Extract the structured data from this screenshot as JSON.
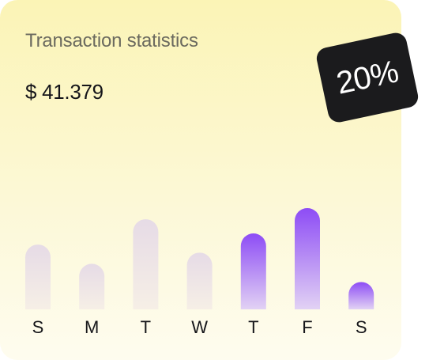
{
  "card": {
    "title": "Transaction statistics",
    "amount": "$ 41.379",
    "badge": "20%"
  },
  "colors": {
    "card_background": "#fbf4b6",
    "bar_muted_top": "#e6dbe6",
    "bar_highlight_top": "#8d4cf5",
    "badge_background": "#1b1b1d"
  },
  "chart_data": {
    "type": "bar",
    "categories": [
      "S",
      "M",
      "T",
      "W",
      "T",
      "F",
      "S"
    ],
    "values": [
      0.64,
      0.45,
      0.89,
      0.56,
      0.75,
      1.0,
      0.27
    ],
    "highlighted": [
      false,
      false,
      false,
      false,
      true,
      true,
      true
    ],
    "ylim": [
      0,
      1
    ],
    "title": "",
    "xlabel": "",
    "ylabel": "",
    "grid": false
  }
}
